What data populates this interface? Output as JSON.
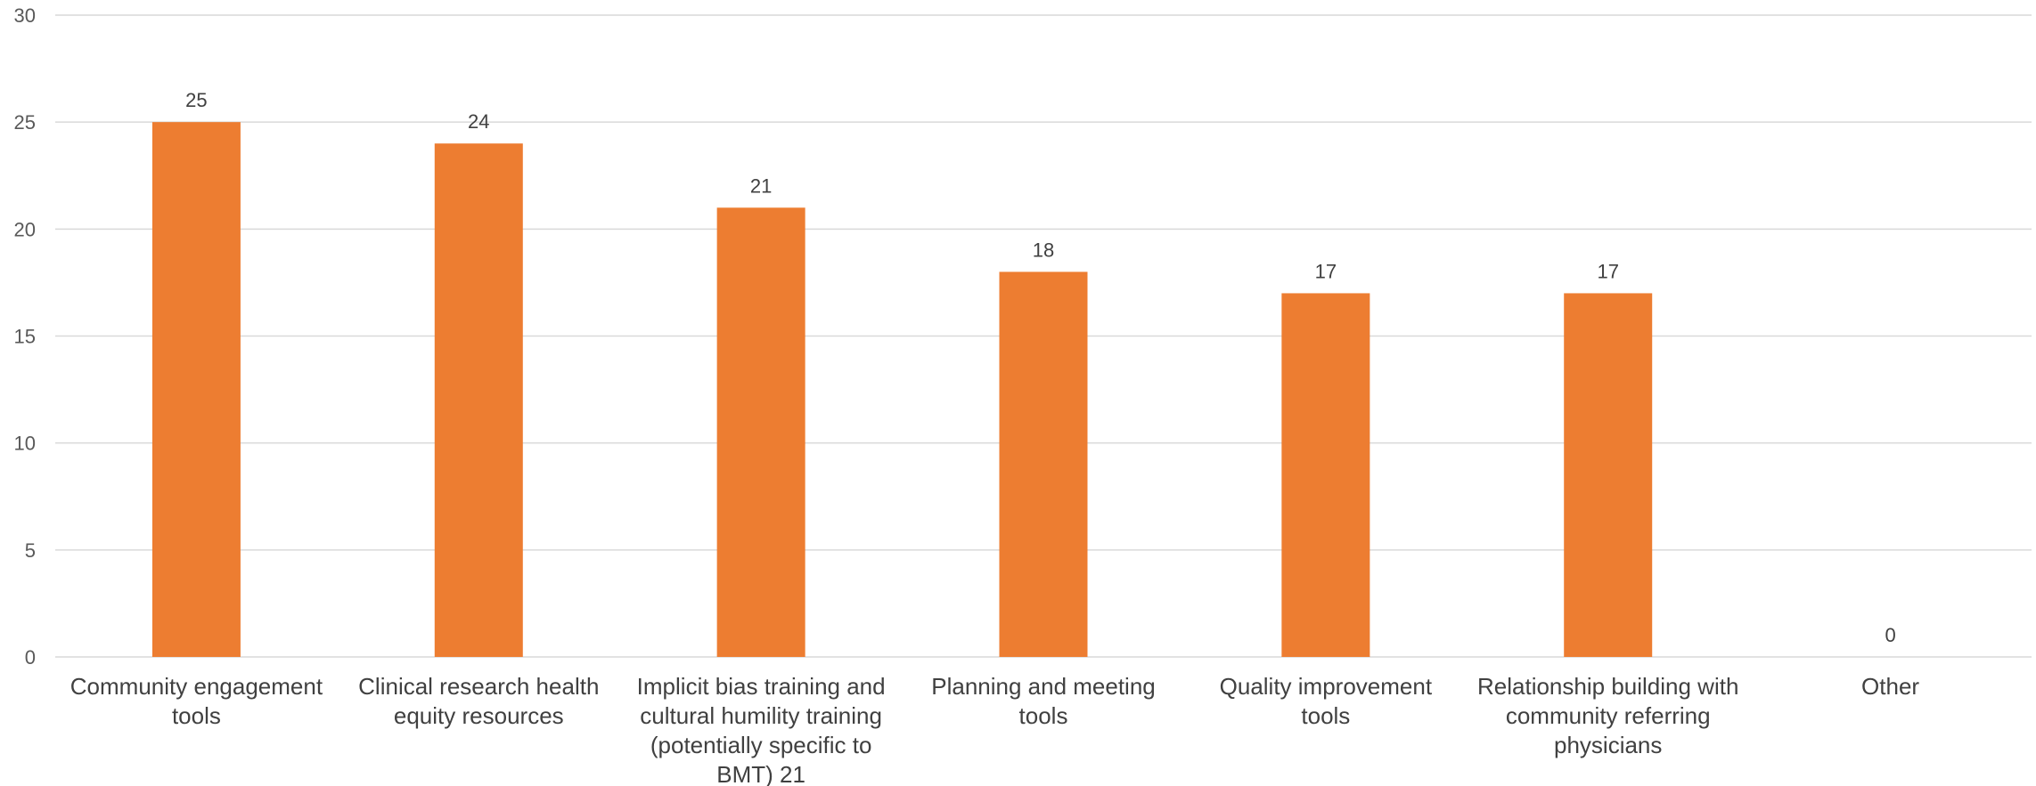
{
  "chart_data": {
    "type": "bar",
    "title": "",
    "xlabel": "",
    "ylabel": "",
    "ylim": [
      0,
      30
    ],
    "yticks": [
      0,
      5,
      10,
      15,
      20,
      25,
      30
    ],
    "grid": true,
    "bar_color": "#ED7D31",
    "data_labels": true,
    "categories": [
      [
        "Community engagement",
        "tools"
      ],
      [
        "Clinical research health",
        "equity resources"
      ],
      [
        "Implicit bias training and",
        "cultural humility training",
        "(potentially specific to",
        "BMT) 21"
      ],
      [
        "Planning and meeting",
        "tools"
      ],
      [
        "Quality improvement",
        "tools"
      ],
      [
        "Relationship building with",
        "community referring",
        "physicians"
      ],
      [
        "Other"
      ]
    ],
    "values": [
      25,
      24,
      21,
      18,
      17,
      17,
      0
    ]
  }
}
